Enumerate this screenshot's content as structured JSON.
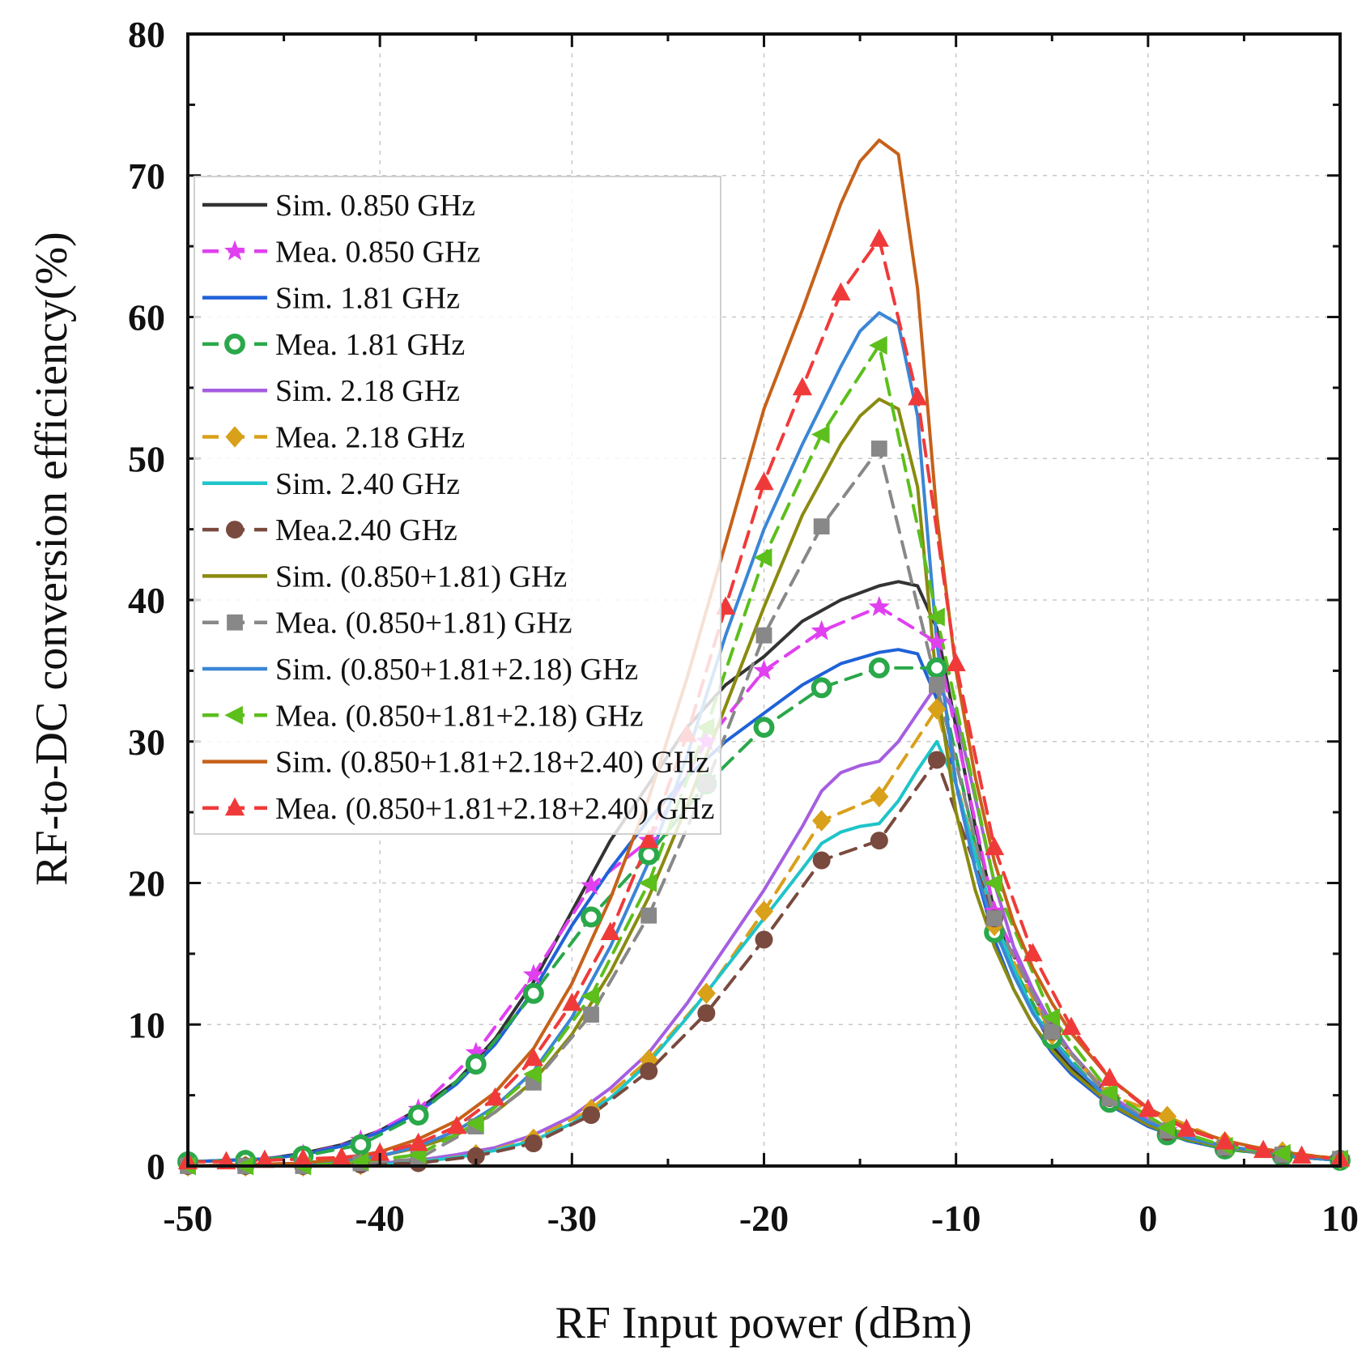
{
  "chart_data": {
    "type": "line",
    "title": "",
    "xlabel": "RF Input power (dBm)",
    "ylabel": "RF-to-DC conversion efficiency(%)",
    "xlim": [
      -50,
      10
    ],
    "ylim": [
      0,
      80
    ],
    "xticks": [
      -50,
      -40,
      -30,
      -20,
      -10,
      0,
      10
    ],
    "yticks": [
      0,
      10,
      20,
      30,
      40,
      50,
      60,
      70,
      80
    ],
    "xtick_labels": [
      "-50",
      "-40",
      "-30",
      "-20",
      "-10",
      "0",
      "10"
    ],
    "ytick_labels": [
      "0",
      "10",
      "20",
      "30",
      "40",
      "50",
      "60",
      "70",
      "80"
    ],
    "grid": true,
    "legend_position": "upper-left",
    "series": [
      {
        "name": "Sim. 0.850 GHz",
        "color": "#333333",
        "dash": false,
        "marker": "none",
        "x": [
          -50,
          -46,
          -44,
          -42,
          -40,
          -38,
          -36,
          -34,
          -32,
          -30,
          -28,
          -26,
          -24,
          -22,
          -20,
          -18,
          -16,
          -14,
          -13,
          -12,
          -11,
          -10,
          -9,
          -8,
          -7,
          -6,
          -5,
          -4,
          -2,
          0,
          2,
          4,
          6,
          8,
          10
        ],
        "y": [
          0.3,
          0.5,
          0.9,
          1.5,
          2.5,
          4,
          6,
          9,
          13,
          18,
          23,
          27,
          31,
          34,
          36,
          38.5,
          40,
          41,
          41.3,
          41,
          38,
          31,
          24,
          18,
          14,
          11,
          8.5,
          7,
          4.5,
          3,
          2,
          1.4,
          1,
          0.6,
          0.4
        ]
      },
      {
        "name": "Mea. 0.850 GHz",
        "color": "#e040f0",
        "dash": true,
        "marker": "star",
        "x": [
          -50,
          -47,
          -44,
          -41,
          -38,
          -35,
          -32,
          -29,
          -26,
          -23,
          -20,
          -17,
          -14,
          -11,
          -8,
          -5,
          -2,
          1,
          4,
          7,
          10
        ],
        "y": [
          0.3,
          0.4,
          0.8,
          1.8,
          4,
          8,
          13.5,
          19.8,
          23,
          30,
          35,
          37.8,
          39.5,
          37,
          18,
          9.5,
          4.8,
          2.5,
          1.3,
          0.8,
          0.5
        ]
      },
      {
        "name": "Sim. 1.81 GHz",
        "color": "#1f62d8",
        "dash": false,
        "marker": "none",
        "x": [
          -50,
          -46,
          -44,
          -42,
          -40,
          -38,
          -36,
          -34,
          -32,
          -30,
          -28,
          -26,
          -24,
          -22,
          -20,
          -18,
          -16,
          -14,
          -13,
          -12,
          -11,
          -10,
          -9,
          -8,
          -7,
          -6,
          -5,
          -4,
          -2,
          0,
          2,
          4,
          6,
          8,
          10
        ],
        "y": [
          0.3,
          0.5,
          0.8,
          1.4,
          2.4,
          3.8,
          5.8,
          8.6,
          12.4,
          17,
          21,
          24.5,
          27.5,
          30,
          32,
          34,
          35.5,
          36.3,
          36.5,
          36.2,
          33,
          27,
          21,
          16,
          12.5,
          10,
          8,
          6.5,
          4.3,
          2.8,
          1.8,
          1.2,
          0.9,
          0.6,
          0.4
        ]
      },
      {
        "name": "Mea. 1.81 GHz",
        "color": "#2aa84a",
        "dash": true,
        "marker": "circle",
        "x": [
          -50,
          -47,
          -44,
          -41,
          -38,
          -35,
          -32,
          -29,
          -26,
          -23,
          -20,
          -17,
          -14,
          -11,
          -8,
          -5,
          -2,
          1,
          4,
          7,
          10
        ],
        "y": [
          0.3,
          0.4,
          0.7,
          1.5,
          3.6,
          7.2,
          12.2,
          17.6,
          22,
          27,
          31,
          33.8,
          35.2,
          35.2,
          16.5,
          9,
          4.5,
          2.2,
          1.2,
          0.7,
          0.4
        ]
      },
      {
        "name": "Sim. 2.18 GHz",
        "color": "#a55ee0",
        "dash": false,
        "marker": "none",
        "x": [
          -50,
          -44,
          -40,
          -38,
          -36,
          -34,
          -32,
          -30,
          -28,
          -26,
          -24,
          -22,
          -20,
          -18,
          -17,
          -16,
          -15,
          -14,
          -13,
          -12,
          -11,
          -10,
          -9,
          -8,
          -7,
          -6,
          -5,
          -4,
          -2,
          0,
          2,
          4,
          6,
          8,
          10
        ],
        "y": [
          0,
          0,
          0.2,
          0.4,
          0.8,
          1.3,
          2.2,
          3.5,
          5.5,
          8,
          11.5,
          15.5,
          19.5,
          24,
          26.5,
          27.8,
          28.3,
          28.6,
          30,
          32,
          34,
          32,
          26,
          20,
          15.5,
          12.5,
          10,
          8,
          5,
          3.2,
          2.1,
          1.4,
          1,
          0.7,
          0.5
        ]
      },
      {
        "name": "Mea. 2.18 GHz",
        "color": "#d9a01a",
        "dash": true,
        "marker": "diamond",
        "x": [
          -50,
          -47,
          -44,
          -41,
          -38,
          -35,
          -32,
          -29,
          -26,
          -23,
          -20,
          -17,
          -14,
          -11,
          -8,
          -5,
          -2,
          1,
          4,
          7,
          10
        ],
        "y": [
          0,
          0,
          0,
          0.1,
          0.3,
          0.8,
          1.9,
          4,
          7.5,
          12.2,
          18,
          24.4,
          26.1,
          32.3,
          17,
          9.3,
          5,
          3.5,
          1.7,
          1,
          0.5
        ]
      },
      {
        "name": "Sim. 2.40 GHz",
        "color": "#1ec4c8",
        "dash": false,
        "marker": "none",
        "x": [
          -50,
          -44,
          -40,
          -38,
          -36,
          -34,
          -32,
          -30,
          -28,
          -26,
          -24,
          -22,
          -20,
          -18,
          -17,
          -16,
          -15,
          -14,
          -13,
          -12,
          -11,
          -10,
          -9,
          -8,
          -7,
          -6,
          -5,
          -4,
          -2,
          0,
          2,
          4,
          6,
          8,
          10
        ],
        "y": [
          0,
          0,
          0.1,
          0.3,
          0.6,
          1.1,
          1.8,
          3,
          4.8,
          7.3,
          10.5,
          14,
          17.5,
          21,
          22.8,
          23.6,
          24,
          24.2,
          25.8,
          28,
          30,
          27,
          22,
          17.5,
          14,
          11,
          9,
          7.3,
          4.6,
          3,
          2,
          1.3,
          0.9,
          0.6,
          0.4
        ]
      },
      {
        "name": "Mea.2.40 GHz",
        "color": "#7a4a3e",
        "dash": true,
        "marker": "circle-filled",
        "x": [
          -50,
          -47,
          -44,
          -41,
          -38,
          -35,
          -32,
          -29,
          -26,
          -23,
          -20,
          -17,
          -14,
          -11,
          -8,
          -5,
          -2,
          1,
          4,
          7,
          10
        ],
        "y": [
          0,
          0,
          0,
          0.1,
          0.2,
          0.7,
          1.6,
          3.6,
          6.7,
          10.8,
          16,
          21.6,
          23,
          28.7,
          17.5,
          9.5,
          4.8,
          2.4,
          1.3,
          0.8,
          0.5
        ]
      },
      {
        "name": "Sim. (0.850+1.81) GHz",
        "color": "#8a8a10",
        "dash": false,
        "marker": "none",
        "x": [
          -50,
          -44,
          -42,
          -40,
          -38,
          -36,
          -34,
          -32,
          -30,
          -28,
          -26,
          -24,
          -22,
          -20,
          -18,
          -16,
          -15,
          -14,
          -13,
          -12,
          -11,
          -10,
          -9,
          -8,
          -7,
          -6,
          -5,
          -4,
          -2,
          0,
          2,
          4,
          6,
          8,
          10
        ],
        "y": [
          0,
          0.1,
          0.3,
          0.7,
          1.3,
          2.2,
          3.8,
          6,
          9.3,
          13.7,
          19,
          25.5,
          32.5,
          39.5,
          46,
          51,
          53,
          54.2,
          53.5,
          48,
          34,
          25,
          19.5,
          15.5,
          12.5,
          10,
          8.2,
          6.7,
          4.4,
          2.9,
          1.9,
          1.3,
          0.9,
          0.6,
          0.4
        ]
      },
      {
        "name": "Mea. (0.850+1.81) GHz",
        "color": "#888888",
        "dash": true,
        "marker": "square",
        "x": [
          -50,
          -47,
          -44,
          -41,
          -38,
          -35,
          -32,
          -29,
          -26,
          -23,
          -20,
          -17,
          -14,
          -11,
          -8,
          -5,
          -2,
          1,
          4,
          7,
          10
        ],
        "y": [
          0,
          0,
          0,
          0.2,
          0.5,
          2.8,
          5.9,
          10.7,
          17.7,
          27,
          37.5,
          45.2,
          50.7,
          34,
          17.5,
          9.5,
          4.8,
          2.5,
          1.3,
          0.8,
          0.5
        ]
      },
      {
        "name": "Sim. (0.850+1.81+2.18) GHz",
        "color": "#3a86d6",
        "dash": false,
        "marker": "none",
        "x": [
          -50,
          -44,
          -42,
          -40,
          -38,
          -36,
          -34,
          -32,
          -30,
          -28,
          -26,
          -24,
          -22,
          -20,
          -18,
          -16,
          -15,
          -14,
          -13,
          -12,
          -11,
          -10,
          -9,
          -8,
          -7,
          -6,
          -5,
          -4,
          -2,
          0,
          2,
          4,
          6,
          8,
          10
        ],
        "y": [
          0,
          0.1,
          0.3,
          0.7,
          1.4,
          2.5,
          4.2,
          6.7,
          10.5,
          15.5,
          21.5,
          29,
          37.5,
          45,
          51,
          56.5,
          59,
          60.3,
          59.5,
          53,
          37,
          27,
          21,
          16.8,
          13.5,
          10.8,
          8.8,
          7.2,
          4.7,
          3.1,
          2,
          1.4,
          1,
          0.6,
          0.4
        ]
      },
      {
        "name": "Mea. (0.850+1.81+2.18) GHz",
        "color": "#5cbf1c",
        "dash": true,
        "marker": "triangle-left",
        "x": [
          -50,
          -47,
          -44,
          -41,
          -38,
          -35,
          -32,
          -29,
          -26,
          -23,
          -20,
          -17,
          -14,
          -11,
          -8,
          -5,
          -2,
          1,
          4,
          7,
          10
        ],
        "y": [
          0,
          0,
          0,
          0.3,
          0.8,
          3,
          6.5,
          12,
          20,
          31,
          43,
          51.7,
          58,
          38.8,
          20,
          10.5,
          5.2,
          2.7,
          1.4,
          0.9,
          0.5
        ]
      },
      {
        "name": "Sim. (0.850+1.81+2.18+2.40) GHz",
        "color": "#c6611a",
        "dash": false,
        "marker": "none",
        "x": [
          -50,
          -44,
          -42,
          -40,
          -38,
          -36,
          -34,
          -32,
          -30,
          -28,
          -26,
          -24,
          -22,
          -20,
          -18,
          -16,
          -15,
          -14,
          -13,
          -12,
          -11,
          -10,
          -9,
          -8,
          -7,
          -6,
          -5,
          -4,
          -2,
          0,
          2,
          4,
          6,
          8,
          10
        ],
        "y": [
          0,
          0.2,
          0.5,
          1,
          1.9,
          3.2,
          5.2,
          8.3,
          12.9,
          18.9,
          26,
          34.5,
          44,
          53.5,
          60.5,
          68,
          71,
          72.5,
          71.5,
          62,
          46,
          35,
          27.5,
          21.5,
          17.2,
          14,
          11.5,
          9.4,
          6.2,
          4.1,
          2.7,
          1.8,
          1.2,
          0.8,
          0.5
        ]
      },
      {
        "name": "Mea. (0.850+1.81+2.18+2.40) GHz",
        "color": "#f03a3a",
        "dash": true,
        "marker": "triangle-up",
        "x": [
          -50,
          -48,
          -46,
          -44,
          -42,
          -40,
          -38,
          -36,
          -34,
          -32,
          -30,
          -28,
          -26,
          -24,
          -22,
          -20,
          -18,
          -16,
          -14,
          -12,
          -10,
          -8,
          -6,
          -4,
          -2,
          0,
          2,
          4,
          6,
          8,
          10
        ],
        "y": [
          0.3,
          0.3,
          0.4,
          0.5,
          0.6,
          0.9,
          1.6,
          2.8,
          4.8,
          7.6,
          11.5,
          16.5,
          23,
          30.5,
          39.5,
          48.3,
          55,
          61.7,
          65.5,
          54.3,
          35.5,
          22.5,
          15,
          9.8,
          6.2,
          4,
          2.6,
          1.7,
          1.1,
          0.7,
          0.5
        ]
      }
    ]
  }
}
